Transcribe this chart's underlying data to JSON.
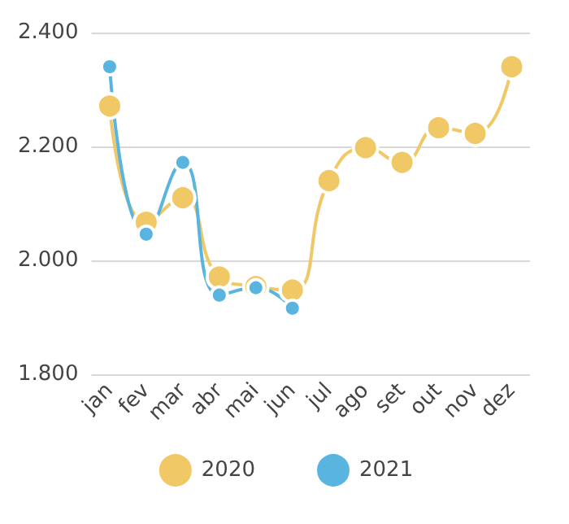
{
  "chart_data": {
    "type": "line",
    "categories": [
      "jan",
      "fev",
      "mar",
      "abr",
      "mai",
      "jun",
      "jul",
      "ago",
      "set",
      "out",
      "nov",
      "dez"
    ],
    "series": [
      {
        "name": "2020",
        "color": "#f0c865",
        "values": [
          2271,
          2067,
          2110,
          1971,
          1954,
          1948,
          2140,
          2198,
          2172,
          2233,
          2223,
          2340
        ]
      },
      {
        "name": "2021",
        "color": "#5ab4e0",
        "values": [
          2340,
          2046,
          2172,
          1939,
          1952,
          1916,
          null,
          null,
          null,
          null,
          null,
          null
        ]
      }
    ],
    "ylim": [
      1800,
      2400
    ],
    "yticks": [
      {
        "value": 1800,
        "label": "1.800"
      },
      {
        "value": 2000,
        "label": "2.000"
      },
      {
        "value": 2200,
        "label": "2.200"
      },
      {
        "value": 2400,
        "label": "2.400"
      }
    ],
    "grid": "y",
    "legend": "bottom",
    "marker": "circle",
    "line_style": "solid"
  }
}
